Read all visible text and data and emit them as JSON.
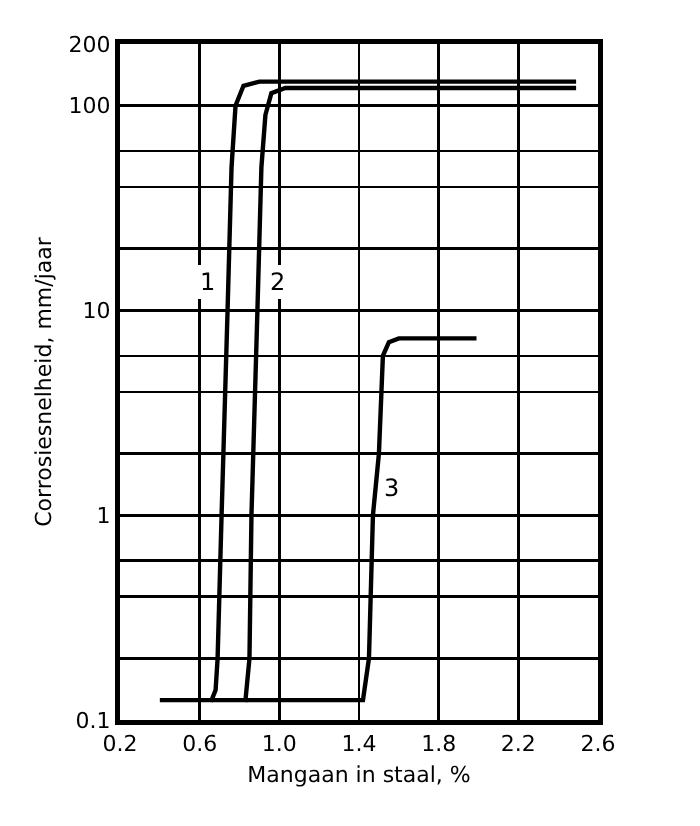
{
  "chart_data": {
    "type": "line",
    "xlabel": "Mangaan in staal, %",
    "ylabel": "Corrosiesnelheid, mm/jaar",
    "log": "y",
    "grid": true,
    "marker": "none",
    "line_style": "solid",
    "xlim": [
      0.2,
      2.6
    ],
    "xticks": [
      0.2,
      0.6,
      {
        "value": 1,
        "label": "1.0"
      },
      1.4,
      1.8,
      2.2,
      2.6
    ],
    "ylim": [
      0.1,
      200
    ],
    "yticks": [
      0.1,
      {
        "value": 0.2,
        "label": null
      },
      {
        "value": 0.4,
        "label": null
      },
      {
        "value": 0.6,
        "label": null
      },
      1,
      {
        "value": 2,
        "label": null
      },
      {
        "value": 4,
        "label": null
      },
      {
        "value": 6,
        "label": null
      },
      10,
      {
        "value": 20,
        "label": null
      },
      {
        "value": 40,
        "label": null
      },
      {
        "value": 60,
        "label": null
      },
      100,
      200
    ],
    "series": [
      {
        "name": "1",
        "color": "#000000",
        "x": [
          0.4,
          0.66,
          0.68,
          0.69,
          0.71,
          0.74,
          0.76,
          0.78,
          0.82,
          0.9,
          1.2,
          2.49
        ],
        "values": [
          0.125,
          0.125,
          0.14,
          0.2,
          1,
          10,
          50,
          100,
          125,
          131,
          131,
          131
        ]
      },
      {
        "name": "2",
        "color": "#000000",
        "x": [
          0.66,
          0.83,
          0.85,
          0.86,
          0.89,
          0.91,
          0.93,
          0.96,
          1.03,
          1.5,
          2.49
        ],
        "values": [
          0.125,
          0.125,
          0.2,
          1,
          10,
          50,
          90,
          115,
          122,
          122,
          122
        ]
      },
      {
        "name": "3",
        "color": "#000000",
        "x": [
          0.83,
          1.42,
          1.45,
          1.47,
          1.5,
          1.52,
          1.55,
          1.6,
          1.99
        ],
        "values": [
          0.125,
          0.125,
          0.2,
          1,
          2,
          6,
          7,
          7.3,
          7.3
        ]
      }
    ]
  }
}
